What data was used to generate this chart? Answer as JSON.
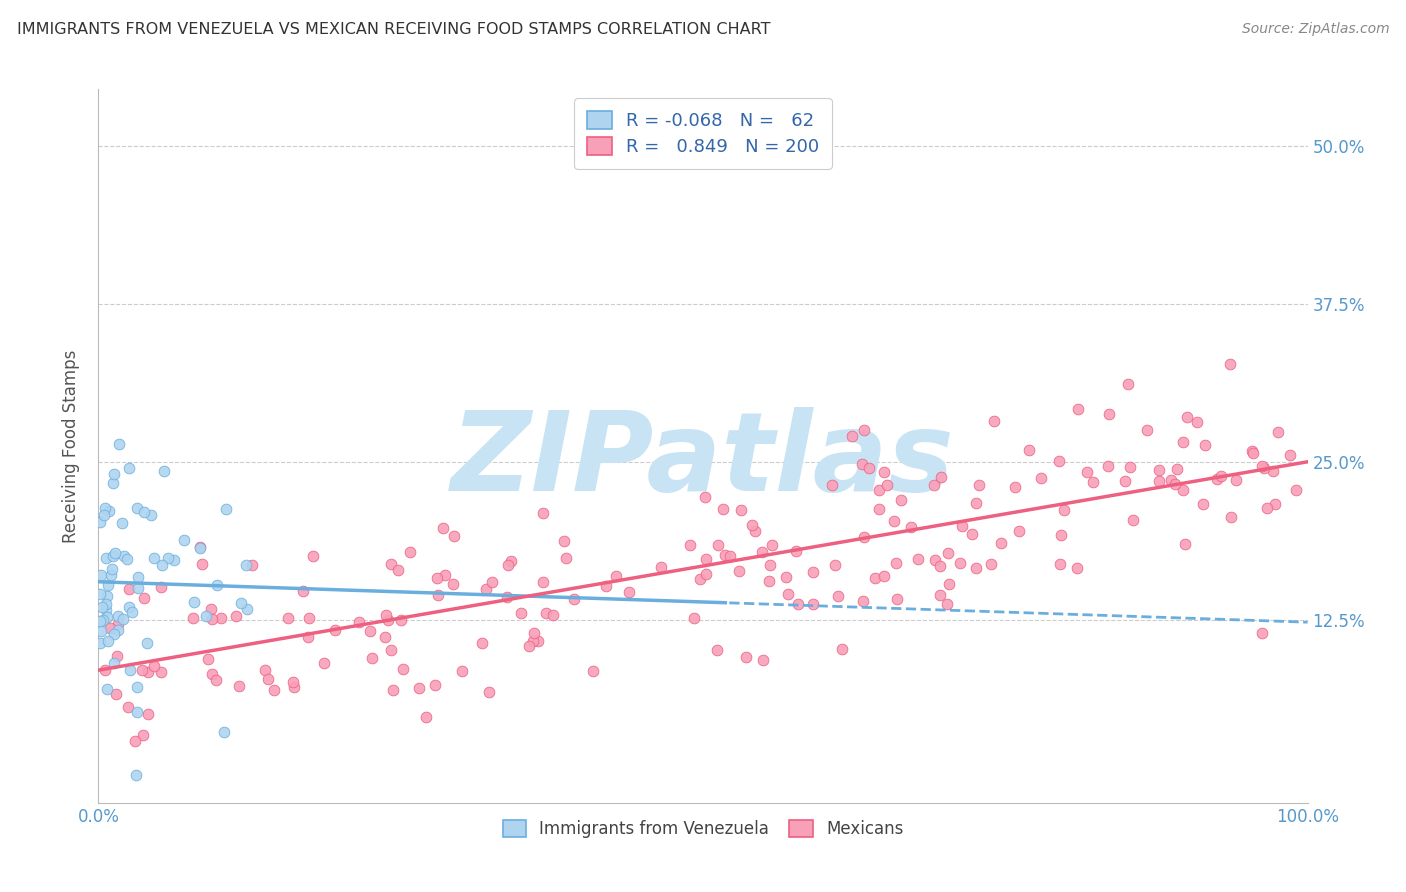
{
  "title": "IMMIGRANTS FROM VENEZUELA VS MEXICAN RECEIVING FOOD STAMPS CORRELATION CHART",
  "source": "Source: ZipAtlas.com",
  "ylabel": "Receiving Food Stamps",
  "xlim": [
    0.0,
    1.0
  ],
  "ylim": [
    -0.02,
    0.545
  ],
  "xticks": [
    0.0,
    0.25,
    0.5,
    0.75,
    1.0
  ],
  "xticklabels": [
    "0.0%",
    "",
    "",
    "",
    "100.0%"
  ],
  "yticks": [
    0.125,
    0.25,
    0.375,
    0.5
  ],
  "yticklabels": [
    "12.5%",
    "25.0%",
    "37.5%",
    "50.0%"
  ],
  "venezuela_R": -0.068,
  "venezuela_N": 62,
  "mexico_R": 0.849,
  "mexico_N": 200,
  "venezuela_color": "#6AAEDE",
  "venezuela_scatter_color": "#AED4F0",
  "mexico_color": "#EE6080",
  "mexico_scatter_color": "#F8A0B8",
  "background_color": "#FFFFFF",
  "grid_color": "#CCCCCC",
  "watermark_text": "ZIPatlas",
  "watermark_color": "#C8E4F4",
  "title_color": "#333333",
  "tick_color": "#5599CC",
  "legend_text_color": "#3366AA",
  "seed": 42,
  "venezuela_trend_solid_end": 0.52,
  "mexico_trend_intercept": 0.085,
  "mexico_trend_slope": 0.165,
  "venezuela_trend_intercept": 0.155,
  "venezuela_trend_slope": -0.032
}
